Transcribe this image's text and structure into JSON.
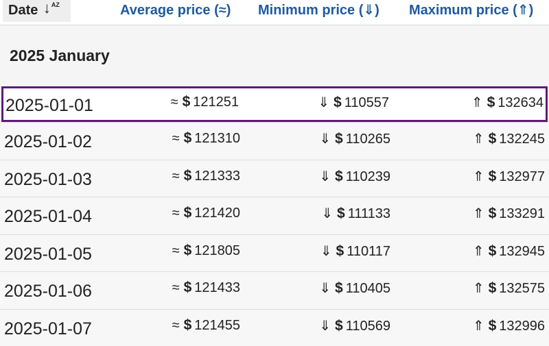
{
  "header": {
    "date_label": "Date",
    "date_sort_icon": "sort-az-icon",
    "date_sort_letters": "AZ",
    "avg_label": "Average price (≈)",
    "min_label": "Minimum price (⇓)",
    "max_label": "Maximum price (⇑)"
  },
  "month": {
    "title": "2025 January"
  },
  "symbols": {
    "avg": "≈",
    "min": "⇓",
    "max": "⇑",
    "currency": "$"
  },
  "colors": {
    "header_link": "#1f5a9e",
    "selected_border": "#5b1a7e"
  },
  "rows": [
    {
      "date": "2025-01-01",
      "avg": "121251",
      "min": "110557",
      "max": "132634",
      "selected": true
    },
    {
      "date": "2025-01-02",
      "avg": "121310",
      "min": "110265",
      "max": "132245"
    },
    {
      "date": "2025-01-03",
      "avg": "121333",
      "min": "110239",
      "max": "132977"
    },
    {
      "date": "2025-01-04",
      "avg": "121420",
      "min": "111133",
      "max": "133291"
    },
    {
      "date": "2025-01-05",
      "avg": "121805",
      "min": "110117",
      "max": "132945"
    },
    {
      "date": "2025-01-06",
      "avg": "121433",
      "min": "110405",
      "max": "132575"
    },
    {
      "date": "2025-01-07",
      "avg": "121455",
      "min": "110569",
      "max": "132996"
    }
  ]
}
